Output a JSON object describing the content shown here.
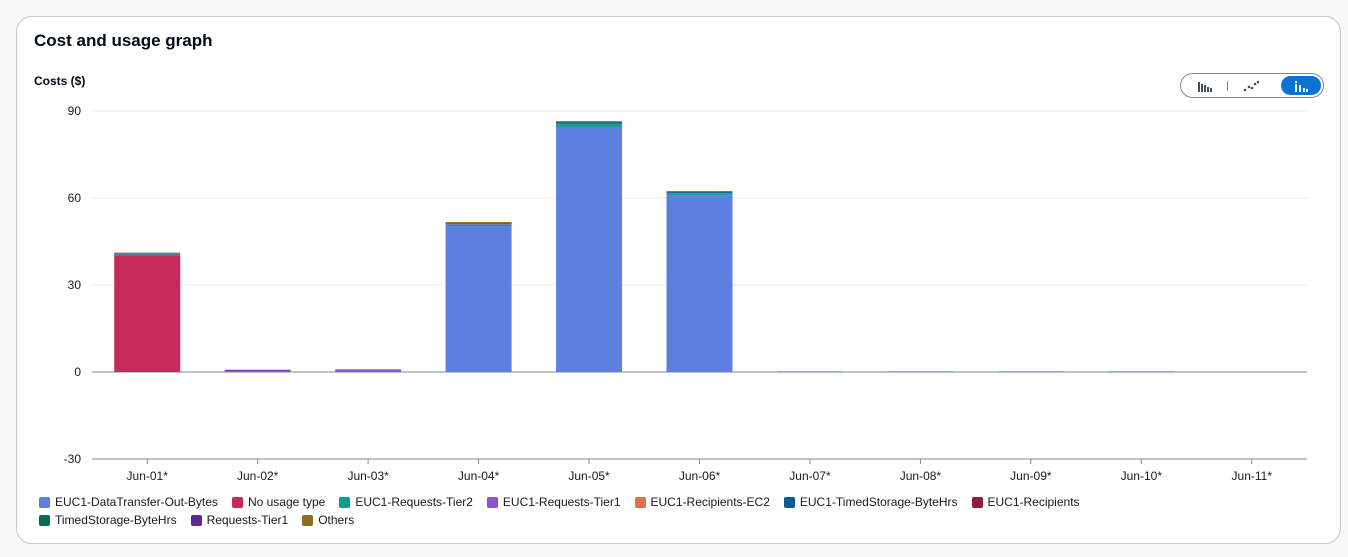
{
  "panel": {
    "title": "Cost and usage graph"
  },
  "toggle": {
    "options": [
      {
        "icon": "bar-chart-icon",
        "active": false
      },
      {
        "icon": "line-chart-icon",
        "active": false
      },
      {
        "icon": "stacked-bar-chart-icon",
        "active": true
      }
    ]
  },
  "colors": {
    "accent": "#0972d3",
    "grid": "#e9ebed",
    "axis": "#7d8998"
  },
  "chart_data": {
    "type": "bar",
    "stacked": true,
    "title": "",
    "ylabel": "Costs ($)",
    "xlabel": "",
    "ylim": [
      -30,
      90
    ],
    "yticks": [
      -30,
      0,
      30,
      60,
      90
    ],
    "grid": true,
    "legend_position": "bottom",
    "categories": [
      "Jun-01*",
      "Jun-02*",
      "Jun-03*",
      "Jun-04*",
      "Jun-05*",
      "Jun-06*",
      "Jun-07*",
      "Jun-08*",
      "Jun-09*",
      "Jun-10*",
      "Jun-11*"
    ],
    "series": [
      {
        "name": "EUC1-DataTransfer-Out-Bytes",
        "color": "#5c7fe0",
        "values": [
          0,
          0,
          0,
          50.2,
          84.5,
          61.0,
          0,
          0,
          0,
          0,
          0
        ]
      },
      {
        "name": "No usage type",
        "color": "#c7295b",
        "values": [
          40.3,
          0,
          0,
          0,
          0,
          0,
          0,
          0,
          0,
          0,
          0
        ]
      },
      {
        "name": "EUC1-Requests-Tier2",
        "color": "#0f9d8d",
        "values": [
          0.2,
          0,
          0,
          0.6,
          1.0,
          0.6,
          0,
          0,
          0,
          0,
          0
        ]
      },
      {
        "name": "EUC1-Requests-Tier1",
        "color": "#8b55cf",
        "values": [
          0.4,
          0.5,
          0.6,
          0.3,
          0.2,
          0.2,
          0,
          0,
          0,
          0,
          0
        ]
      },
      {
        "name": "EUC1-Recipients-EC2",
        "color": "#e07050",
        "values": [
          0,
          0,
          0,
          0,
          0,
          0,
          0.2,
          0.2,
          0.2,
          0.2,
          0
        ]
      },
      {
        "name": "EUC1-TimedStorage-ByteHrs",
        "color": "#0b5c96",
        "values": [
          0,
          0,
          0,
          0.2,
          0.3,
          0.2,
          0,
          0,
          0,
          0,
          0
        ]
      },
      {
        "name": "EUC1-Recipients",
        "color": "#8c1e46",
        "values": [
          0,
          0,
          0,
          0,
          0,
          0,
          0,
          0,
          0,
          0,
          0
        ]
      },
      {
        "name": "TimedStorage-ByteHrs",
        "color": "#0a6b5b",
        "values": [
          0,
          0,
          0,
          0.1,
          0.2,
          0.1,
          0,
          0,
          0,
          0,
          0
        ]
      },
      {
        "name": "Requests-Tier1",
        "color": "#5b2a96",
        "values": [
          0,
          0.1,
          0.1,
          0,
          0,
          0,
          0,
          0,
          0,
          0,
          0
        ]
      },
      {
        "name": "Others",
        "color": "#8e6d1e",
        "values": [
          0.2,
          0,
          0,
          0.3,
          0.3,
          0.2,
          0,
          0,
          0,
          0,
          0
        ]
      }
    ]
  }
}
